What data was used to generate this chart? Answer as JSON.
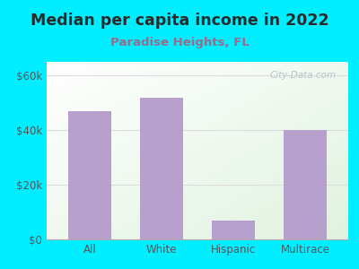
{
  "title": "Median per capita income in 2022",
  "subtitle": "Paradise Heights, FL",
  "categories": [
    "All",
    "White",
    "Hispanic",
    "Multirace"
  ],
  "values": [
    47000,
    52000,
    7000,
    40000
  ],
  "bar_color": "#b8a0cc",
  "ylim": [
    0,
    65000
  ],
  "yticks": [
    0,
    20000,
    40000,
    60000
  ],
  "ytick_labels": [
    "$0",
    "$20k",
    "$40k",
    "$60k"
  ],
  "bg_color": "#00eeff",
  "plot_bg_top_left": "#f0f8f0",
  "plot_bg_bottom_right": "#e8f5e0",
  "title_color": "#2a2a2a",
  "subtitle_color": "#9b6b8a",
  "title_fontsize": 12.5,
  "subtitle_fontsize": 9.5,
  "tick_color": "#555555",
  "watermark": "City-Data.com",
  "grid_color": "#dddddd"
}
